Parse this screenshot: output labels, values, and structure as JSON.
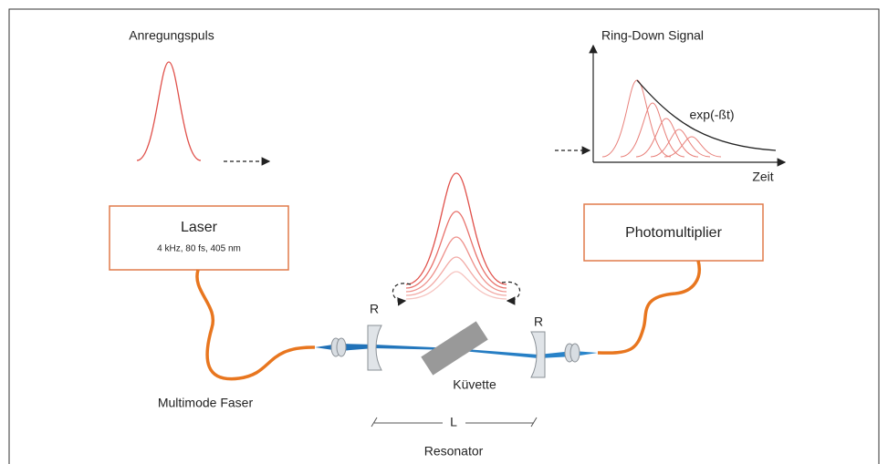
{
  "pulse_label": "Anregungspuls",
  "signal": {
    "title": "Ring-Down Signal",
    "curve_label": "exp(-ßt)",
    "x_label": "Zeit"
  },
  "laser": {
    "title": "Laser",
    "specs": "4 kHz, 80 fs, 405 nm"
  },
  "detector": "Photomultiplier",
  "mirror_left": "R",
  "mirror_right": "R",
  "cuvette": "Küvette",
  "fiber": "Multimode Faser",
  "length": "L",
  "resonator": "Resonator"
}
